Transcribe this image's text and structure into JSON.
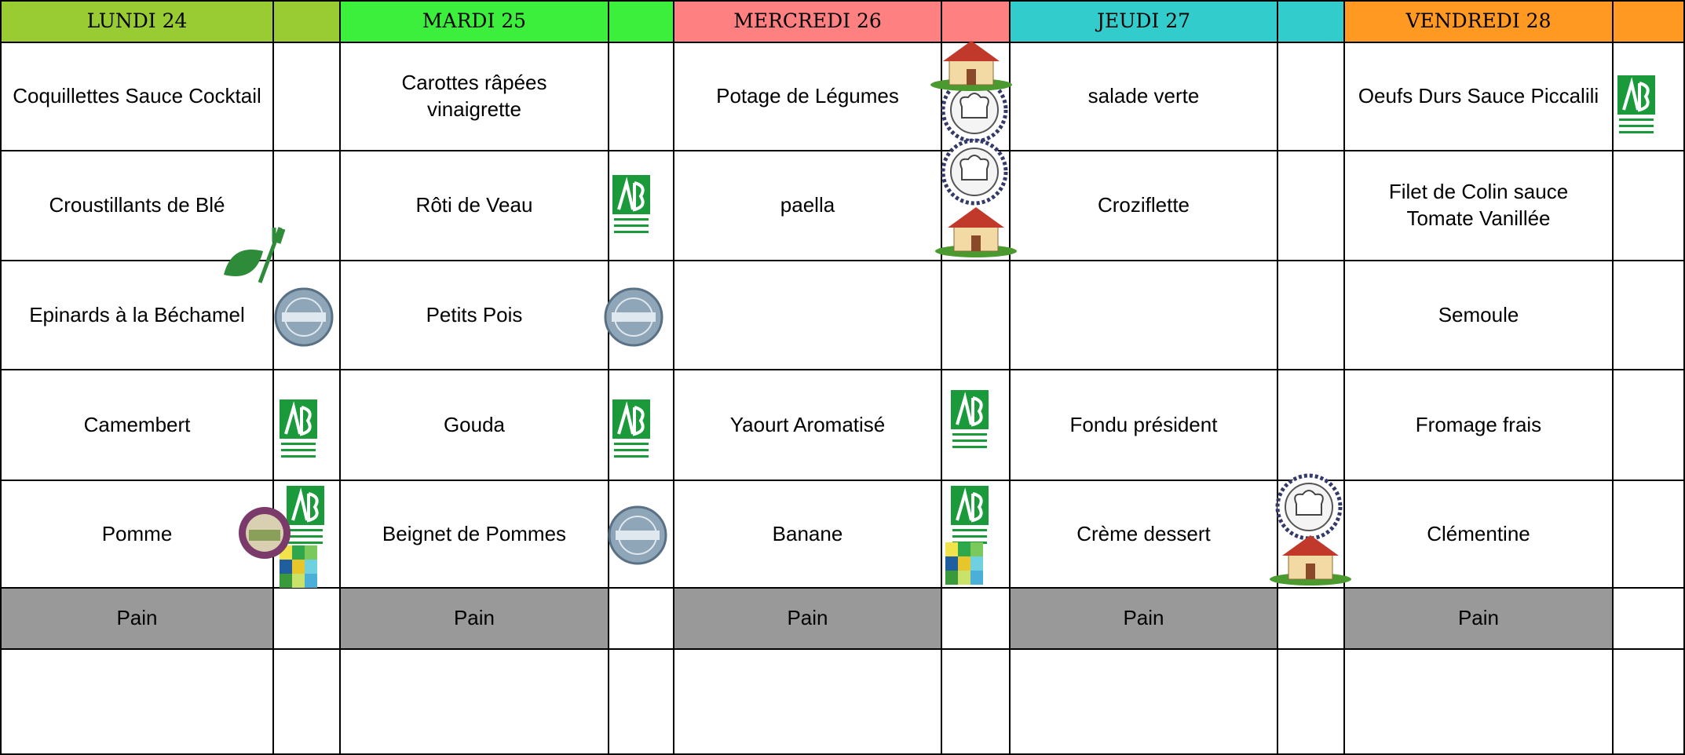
{
  "days": [
    {
      "name": "LUNDI 24",
      "color": "#99cc33",
      "dishes": [
        "Coquillettes Sauce Cocktail",
        "Croustillants de Blé",
        "Epinards à la Béchamel",
        "Camembert",
        "Pomme",
        "Pain"
      ]
    },
    {
      "name": "MARDI 25",
      "color": "#3cef3c",
      "dishes": [
        "Carottes râpées vinaigrette",
        "Rôti de Veau",
        "Petits Pois",
        "Gouda",
        "Beignet de Pommes",
        "Pain"
      ]
    },
    {
      "name": "MERCREDI 26",
      "color": "#ff8080",
      "dishes": [
        "Potage de Légumes",
        "paella",
        null,
        "Yaourt Aromatisé",
        "Banane",
        "Pain"
      ]
    },
    {
      "name": "JEUDI 27",
      "color": "#33cccc",
      "dishes": [
        "salade verte",
        "Croziflette",
        null,
        "Fondu président",
        "Crème dessert",
        "Pain"
      ]
    },
    {
      "name": "VENDREDI 28",
      "color": "#ff9922",
      "dishes": [
        "Oeufs Durs Sauce Piccalili",
        "Filet de Colin sauce Tomate Vanillée",
        "Semoule",
        "Fromage frais",
        "Clémentine",
        "Pain"
      ]
    }
  ]
}
